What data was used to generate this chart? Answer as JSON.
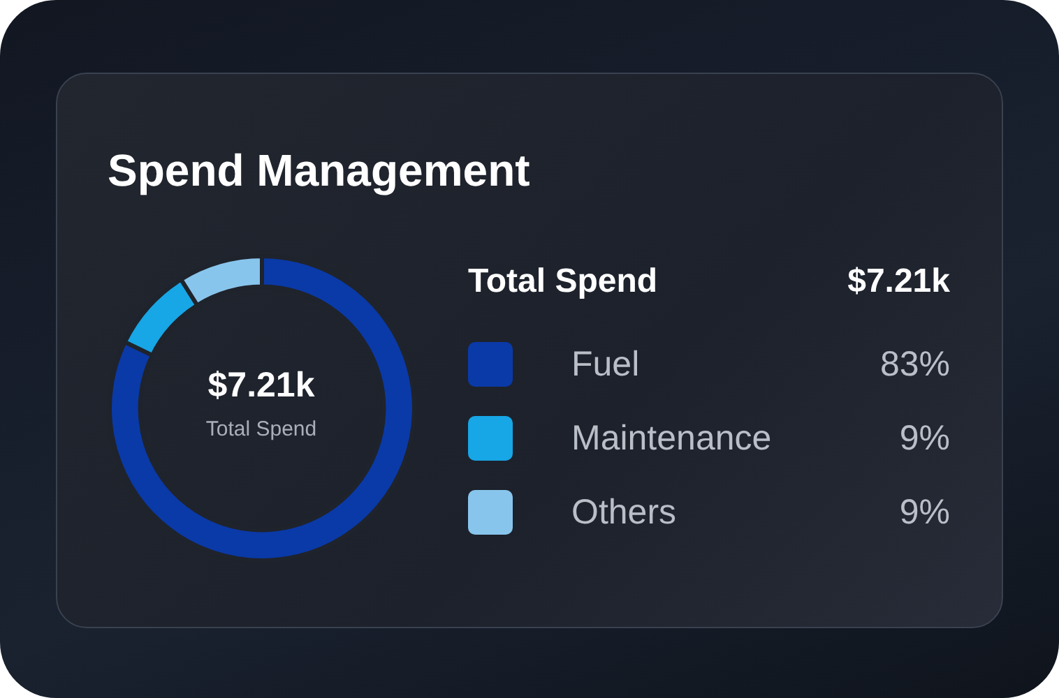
{
  "chart_data": {
    "type": "donut",
    "title": "Spend Management",
    "categories": [
      "Fuel",
      "Maintenance",
      "Others"
    ],
    "values": [
      83,
      9,
      9
    ],
    "colors": [
      "#0a3aa8",
      "#17a6e6",
      "#88c5ec"
    ],
    "value_labels": [
      "83%",
      "9%",
      "9%"
    ],
    "legend": "right",
    "legend_title": "Total Spend",
    "annotations": [
      "$7.21k",
      "Total Spend"
    ]
  }
}
